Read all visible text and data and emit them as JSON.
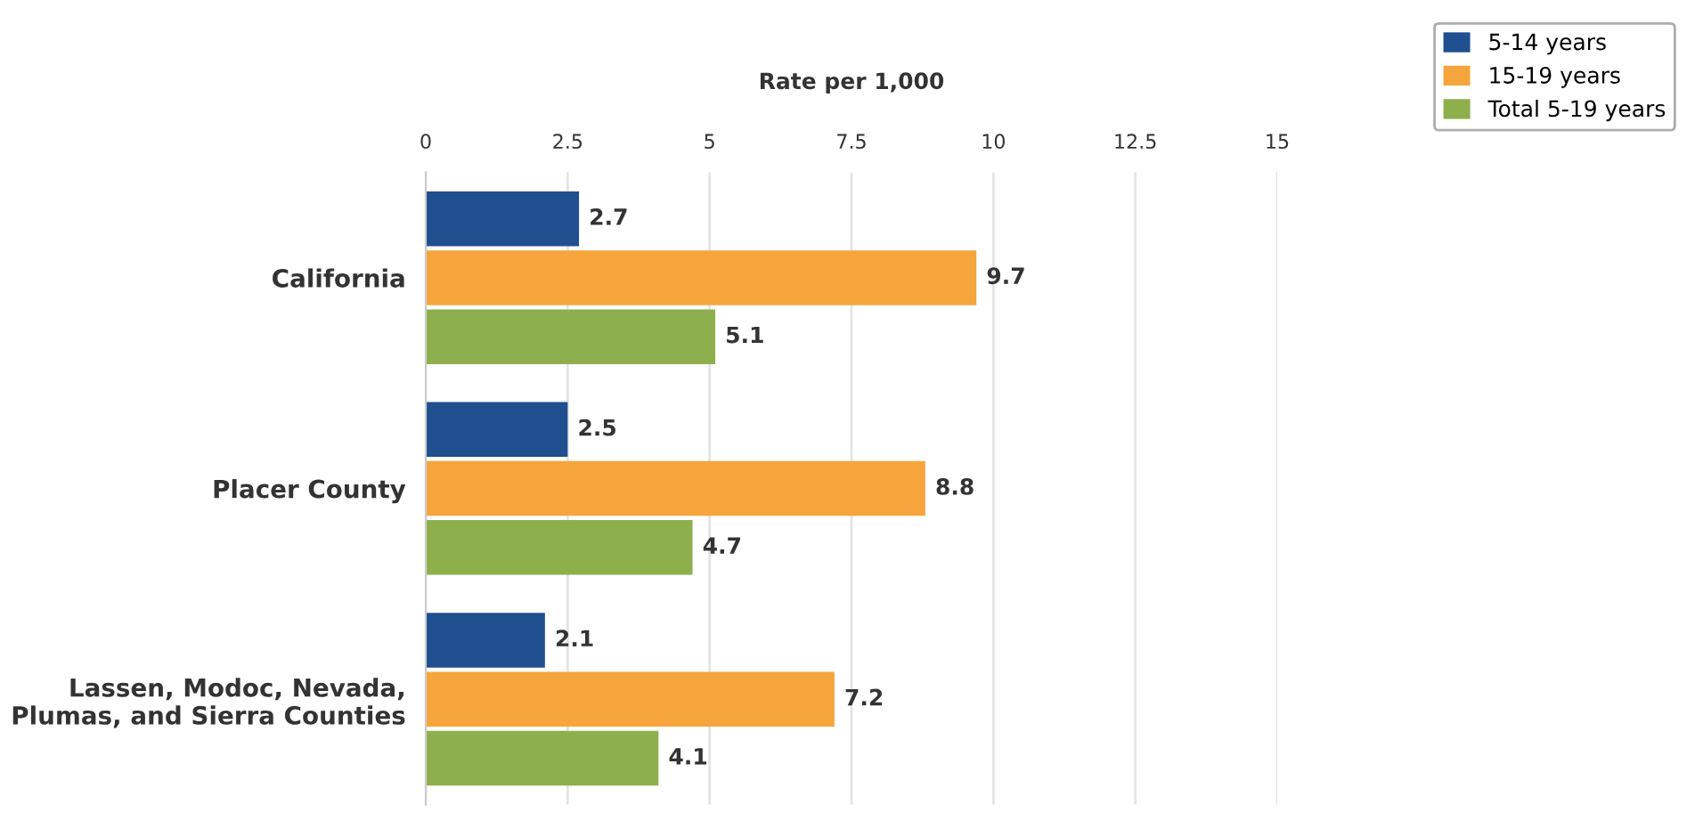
{
  "chart_data": {
    "type": "bar",
    "orientation": "horizontal",
    "xlabel": "Rate per 1,000",
    "categories": [
      "California",
      "Placer County",
      "Lassen, Modoc, Nevada,\nPlumas, and Sierra Counties"
    ],
    "series": [
      {
        "name": "5-14 years",
        "color": "#1f4f8f",
        "values": [
          2.7,
          2.5,
          2.1
        ]
      },
      {
        "name": "15-19 years",
        "color": "#f5a53c",
        "values": [
          9.7,
          8.8,
          7.2
        ]
      },
      {
        "name": "Total 5-19 years",
        "color": "#8eb04c",
        "values": [
          5.1,
          4.7,
          4.1
        ]
      }
    ],
    "xlim": [
      0,
      15
    ],
    "xticks": [
      0,
      2.5,
      5,
      7.5,
      10,
      12.5,
      15
    ],
    "grid": "x",
    "legend": "top right",
    "data_labels": true
  }
}
